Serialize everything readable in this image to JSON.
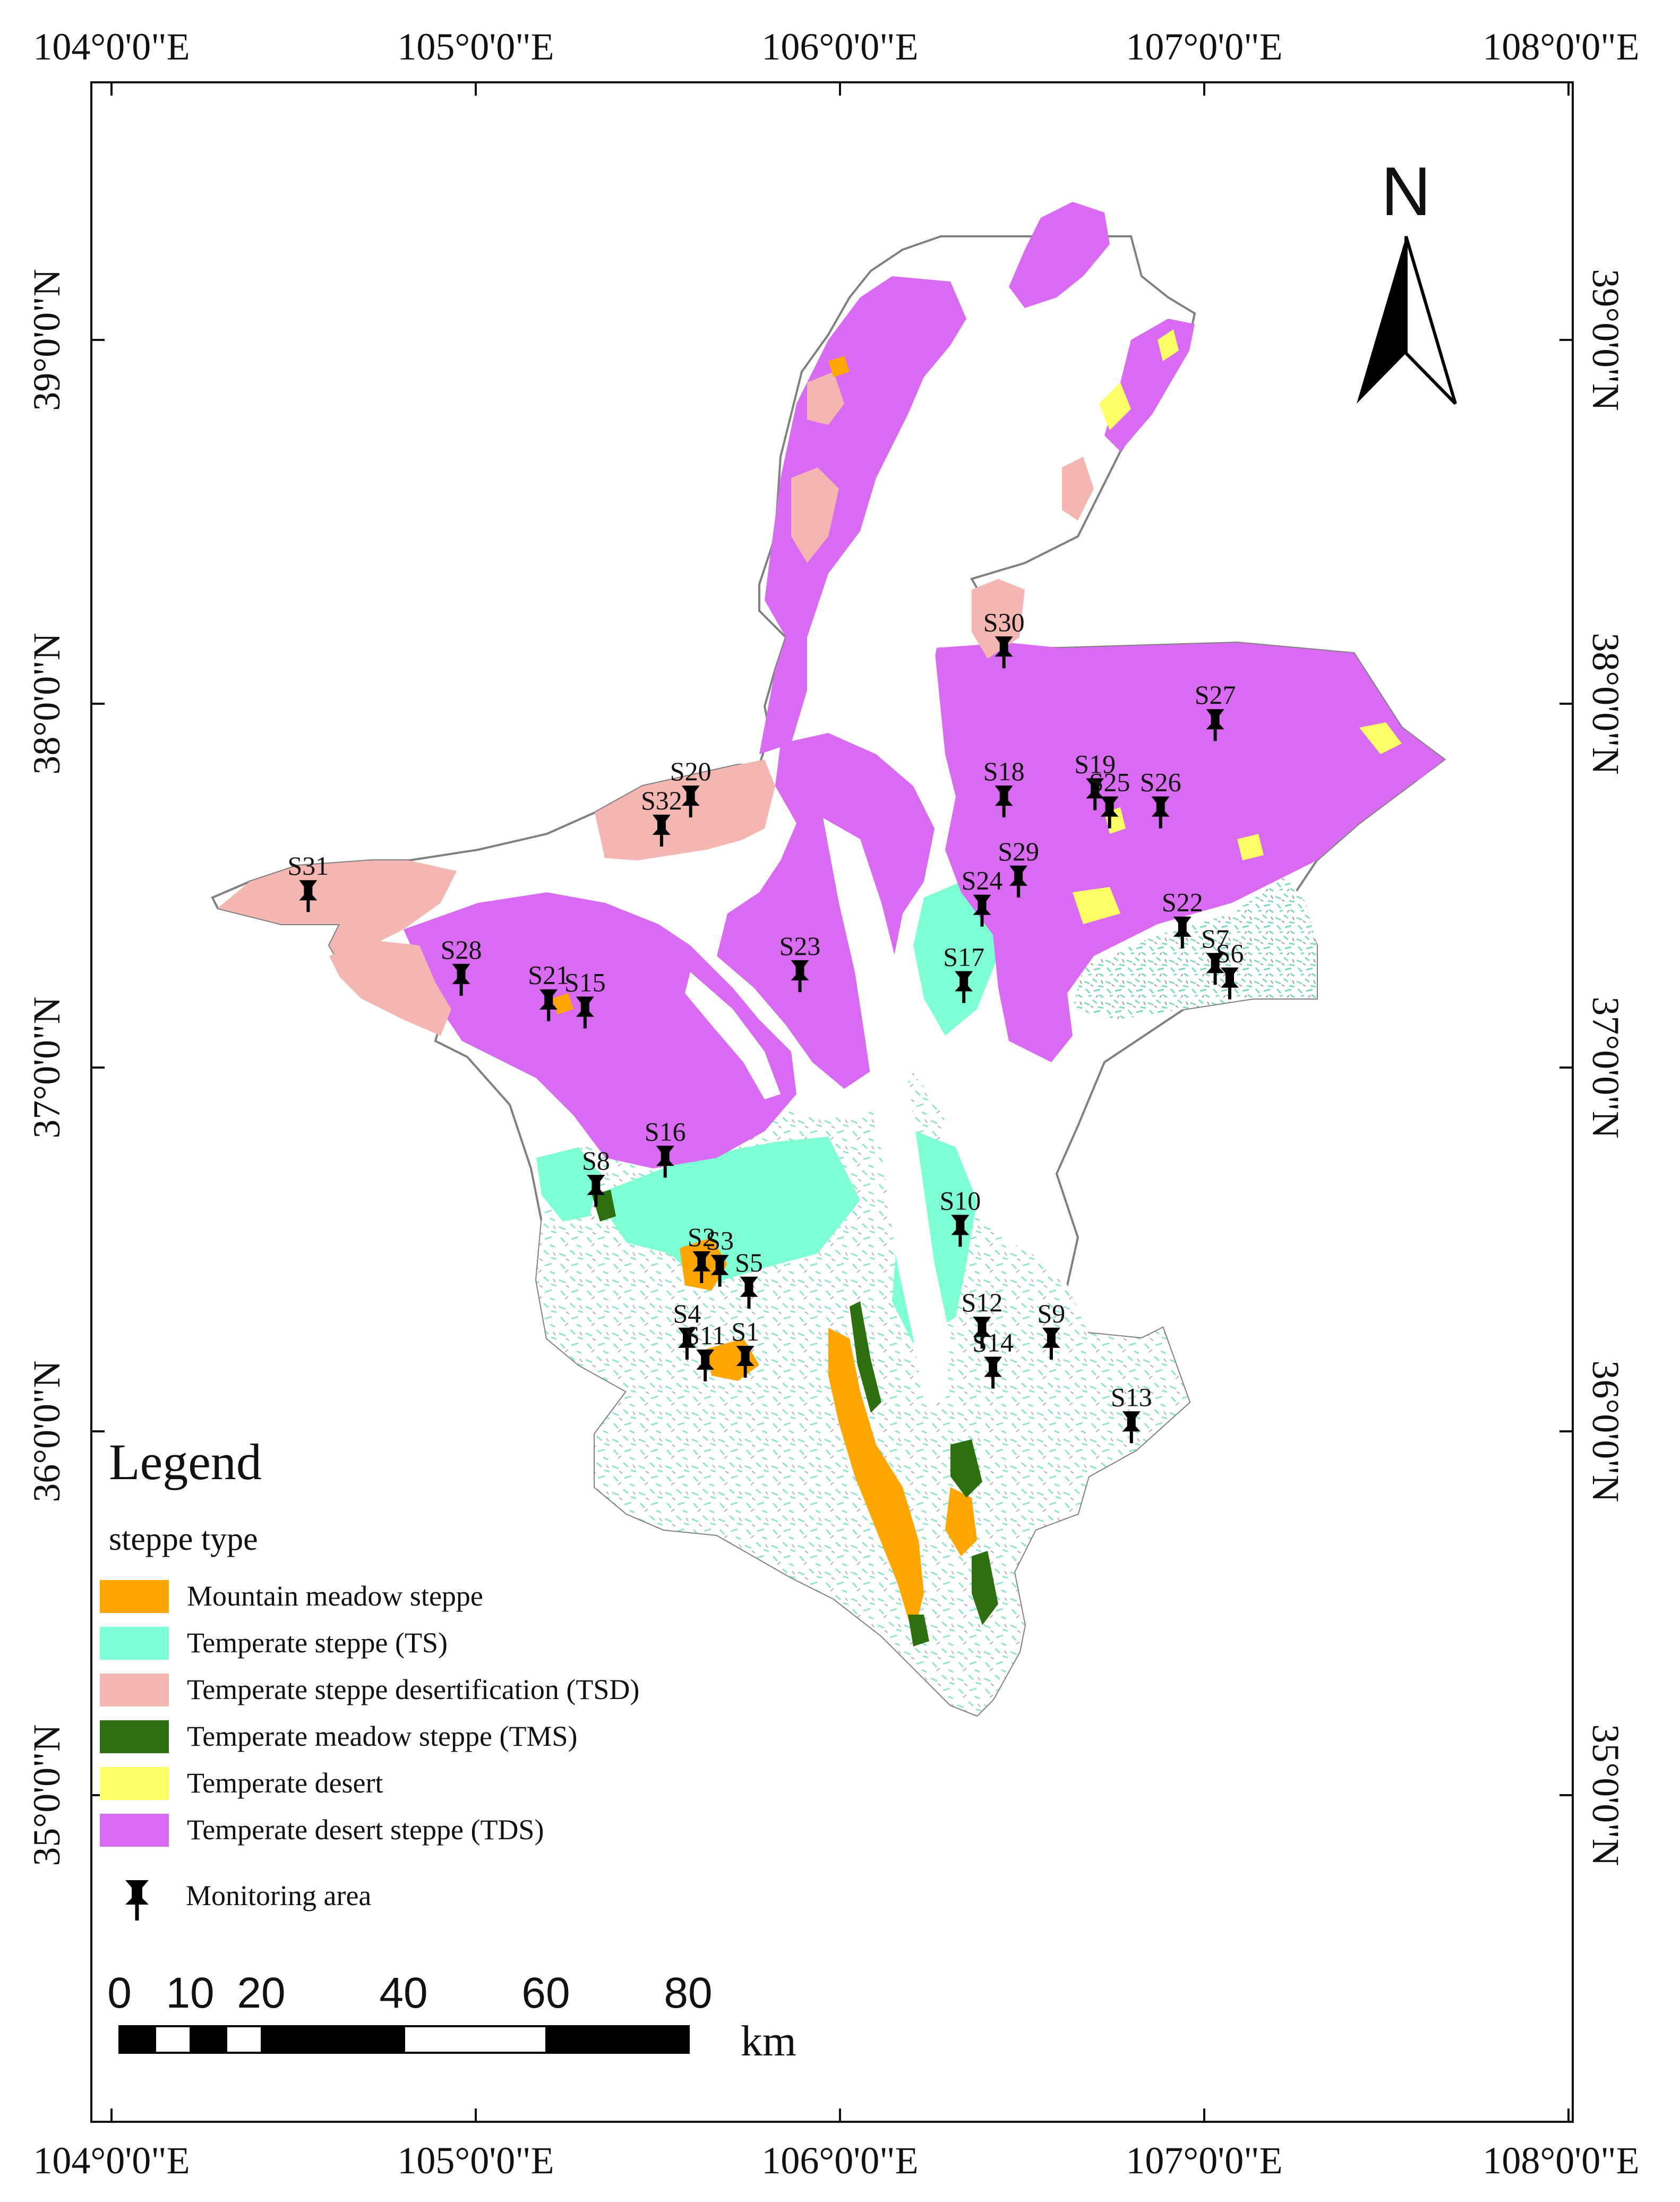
{
  "map": {
    "axes": {
      "lon_ticks": [
        "104°0'0\"E",
        "105°0'0\"E",
        "106°0'0\"E",
        "107°0'0\"E",
        "108°0'0\"E"
      ],
      "lat_ticks": [
        "39°0'0\"N",
        "38°0'0\"N",
        "37°0'0\"N",
        "36°0'0\"N",
        "35°0'0\"N"
      ]
    },
    "north_arrow": {
      "label": "N",
      "icon": "north-arrow-icon"
    },
    "legend": {
      "title": "Legend",
      "subtitle": "steppe type",
      "items": [
        {
          "label": "Mountain meadow steppe",
          "color": "#FFA500"
        },
        {
          "label": "Temperate steppe (TS)",
          "color": "#7FFFD4"
        },
        {
          "label": "Temperate steppe desertification (TSD)",
          "color": "#F4B6B1"
        },
        {
          "label": "Temperate meadow steppe (TMS)",
          "color": "#2E7010"
        },
        {
          "label": "Temperate desert",
          "color": "#FFFF66"
        },
        {
          "label": "Temperate desert steppe (TDS)",
          "color": "#D96BF2"
        }
      ],
      "marker_label": "Monitoring area",
      "marker_icon": "pushpin-icon"
    },
    "scale_bar": {
      "labels": [
        "0",
        "10",
        "20",
        "40",
        "60",
        "80"
      ],
      "unit": "km"
    },
    "sites": [
      {
        "label": "S1",
        "lon": 105.74,
        "lat": 36.2
      },
      {
        "label": "S2",
        "lon": 105.62,
        "lat": 36.46
      },
      {
        "label": "S3",
        "lon": 105.67,
        "lat": 36.45
      },
      {
        "label": "S4",
        "lon": 105.58,
        "lat": 36.25
      },
      {
        "label": "S5",
        "lon": 105.75,
        "lat": 36.39
      },
      {
        "label": "S6",
        "lon": 107.07,
        "lat": 37.24
      },
      {
        "label": "S7",
        "lon": 107.03,
        "lat": 37.28
      },
      {
        "label": "S8",
        "lon": 105.33,
        "lat": 36.67
      },
      {
        "label": "S9",
        "lon": 106.58,
        "lat": 36.25
      },
      {
        "label": "S10",
        "lon": 106.33,
        "lat": 36.56
      },
      {
        "label": "S11",
        "lon": 105.63,
        "lat": 36.19
      },
      {
        "label": "S12",
        "lon": 106.39,
        "lat": 36.28
      },
      {
        "label": "S13",
        "lon": 106.8,
        "lat": 36.02
      },
      {
        "label": "S14",
        "lon": 106.42,
        "lat": 36.17
      },
      {
        "label": "S15",
        "lon": 105.3,
        "lat": 37.16
      },
      {
        "label": "S16",
        "lon": 105.52,
        "lat": 36.75
      },
      {
        "label": "S17",
        "lon": 106.34,
        "lat": 37.23
      },
      {
        "label": "S18",
        "lon": 106.45,
        "lat": 37.74
      },
      {
        "label": "S19",
        "lon": 106.7,
        "lat": 37.76
      },
      {
        "label": "S20",
        "lon": 105.59,
        "lat": 37.74
      },
      {
        "label": "S21",
        "lon": 105.2,
        "lat": 37.18
      },
      {
        "label": "S22",
        "lon": 106.94,
        "lat": 37.38
      },
      {
        "label": "S23",
        "lon": 105.89,
        "lat": 37.26
      },
      {
        "label": "S24",
        "lon": 106.39,
        "lat": 37.44
      },
      {
        "label": "S25",
        "lon": 106.74,
        "lat": 37.71
      },
      {
        "label": "S26",
        "lon": 106.88,
        "lat": 37.71
      },
      {
        "label": "S27",
        "lon": 107.03,
        "lat": 37.95
      },
      {
        "label": "S28",
        "lon": 104.96,
        "lat": 37.25
      },
      {
        "label": "S29",
        "lon": 106.49,
        "lat": 37.52
      },
      {
        "label": "S30",
        "lon": 106.45,
        "lat": 38.15
      },
      {
        "label": "S31",
        "lon": 104.54,
        "lat": 37.48
      },
      {
        "label": "S32",
        "lon": 105.51,
        "lat": 37.66
      }
    ]
  }
}
